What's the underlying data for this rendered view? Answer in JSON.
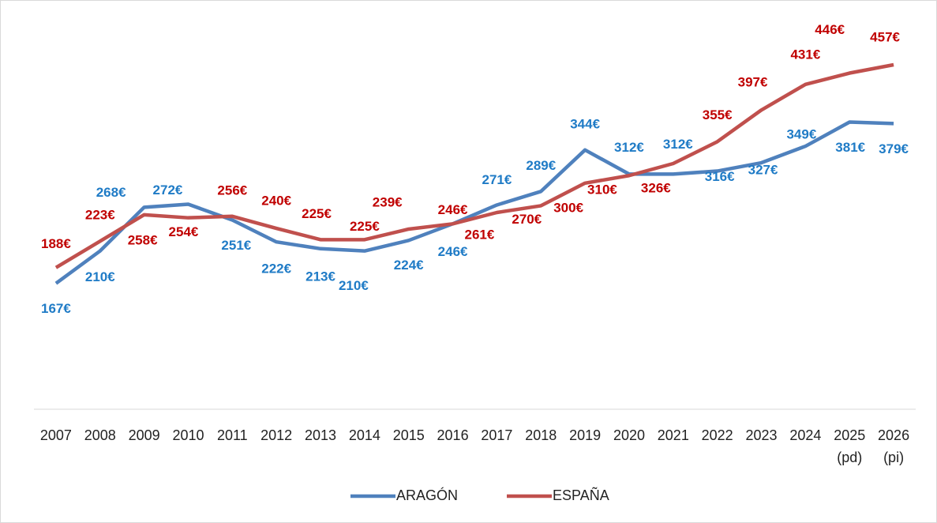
{
  "chart_data": {
    "type": "line",
    "categories": [
      "2007",
      "2008",
      "2009",
      "2010",
      "2011",
      "2012",
      "2013",
      "2014",
      "2015",
      "2016",
      "2017",
      "2018",
      "2019",
      "2020",
      "2021",
      "2022",
      "2023",
      "2024",
      "2025\n(pd)",
      "2026\n(pi)"
    ],
    "series": [
      {
        "name": "ARAGÓN",
        "color": "#4f81bd",
        "label_color": "#1f7bc6",
        "values": [
          167,
          210,
          268,
          272,
          251,
          222,
          213,
          210,
          224,
          246,
          271,
          289,
          344,
          312,
          312,
          316,
          327,
          349,
          381,
          379
        ],
        "value_labels": [
          "167€",
          "210€",
          "268€",
          "272€",
          "251€",
          "222€",
          "213€",
          "210€",
          "224€",
          "246€",
          "271€",
          "289€",
          "344€",
          "312€",
          "312€",
          "316€",
          "327€",
          "349€",
          "381€",
          "379€"
        ]
      },
      {
        "name": "ESPAÑA",
        "color": "#c0504d",
        "label_color": "#c00000",
        "values": [
          188,
          223,
          258,
          254,
          256,
          240,
          225,
          225,
          239,
          246,
          261,
          270,
          300,
          310,
          326,
          355,
          397,
          431,
          446,
          457
        ],
        "value_labels": [
          "188€",
          "223€",
          "258€",
          "254€",
          "256€",
          "240€",
          "225€",
          "225€",
          "239€",
          "246€",
          "261€",
          "270€",
          "300€",
          "310€",
          "326€",
          "355€",
          "397€",
          "431€",
          "446€",
          "457€"
        ]
      }
    ],
    "ylim": [
      0,
      500
    ],
    "legend": "bottom"
  }
}
